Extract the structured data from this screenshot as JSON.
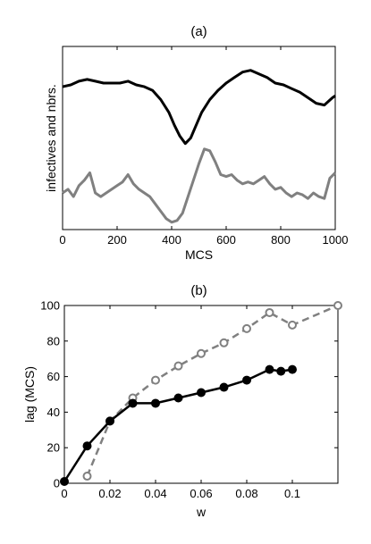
{
  "chart_data": [
    {
      "type": "line",
      "title": "(a)",
      "xlabel": "MCS",
      "ylabel": "infectives and nbrs.",
      "xlim": [
        0,
        1000
      ],
      "ylim": [
        0,
        1
      ],
      "y_ticks_shown": false,
      "xticks": [
        0,
        200,
        400,
        600,
        800,
        1000
      ],
      "xtick_labels": [
        "0",
        "200",
        "400",
        "600",
        "800",
        "1000"
      ],
      "grid": false,
      "series": [
        {
          "color": "#000000",
          "x": [
            0,
            30,
            60,
            90,
            120,
            150,
            180,
            210,
            240,
            270,
            300,
            330,
            360,
            390,
            410,
            430,
            450,
            470,
            490,
            510,
            540,
            570,
            600,
            630,
            660,
            690,
            720,
            750,
            780,
            810,
            840,
            870,
            900,
            930,
            960,
            990,
            1000
          ],
          "y": [
            0.78,
            0.79,
            0.81,
            0.82,
            0.81,
            0.8,
            0.8,
            0.8,
            0.81,
            0.79,
            0.78,
            0.76,
            0.71,
            0.64,
            0.57,
            0.51,
            0.47,
            0.5,
            0.57,
            0.64,
            0.71,
            0.76,
            0.8,
            0.83,
            0.86,
            0.87,
            0.85,
            0.83,
            0.8,
            0.79,
            0.77,
            0.75,
            0.72,
            0.69,
            0.68,
            0.72,
            0.73
          ]
        },
        {
          "color": "#808080",
          "x": [
            0,
            20,
            40,
            60,
            80,
            100,
            120,
            140,
            160,
            180,
            200,
            220,
            240,
            260,
            280,
            300,
            320,
            340,
            360,
            380,
            400,
            420,
            440,
            460,
            480,
            500,
            520,
            540,
            560,
            580,
            600,
            620,
            640,
            660,
            680,
            700,
            720,
            740,
            760,
            780,
            800,
            820,
            840,
            860,
            880,
            900,
            920,
            940,
            960,
            980,
            1000
          ],
          "y": [
            0.2,
            0.22,
            0.18,
            0.24,
            0.27,
            0.31,
            0.2,
            0.18,
            0.2,
            0.22,
            0.24,
            0.26,
            0.3,
            0.25,
            0.22,
            0.2,
            0.18,
            0.14,
            0.1,
            0.06,
            0.04,
            0.05,
            0.09,
            0.18,
            0.27,
            0.36,
            0.44,
            0.43,
            0.37,
            0.3,
            0.29,
            0.3,
            0.27,
            0.25,
            0.26,
            0.25,
            0.27,
            0.29,
            0.25,
            0.22,
            0.23,
            0.2,
            0.18,
            0.2,
            0.19,
            0.17,
            0.2,
            0.18,
            0.17,
            0.28,
            0.31
          ]
        }
      ]
    },
    {
      "type": "line",
      "title": "(b)",
      "xlabel": "w",
      "ylabel": "lag (MCS)",
      "xlim": [
        0,
        0.12
      ],
      "ylim": [
        0,
        100
      ],
      "xticks": [
        0,
        0.02,
        0.04,
        0.06,
        0.08,
        0.1
      ],
      "xtick_labels": [
        "0",
        "0.02",
        "0.04",
        "0.06",
        "0.08",
        "0.1"
      ],
      "yticks": [
        0,
        20,
        40,
        60,
        80,
        100
      ],
      "ytick_labels": [
        "0",
        "20",
        "40",
        "60",
        "80",
        "100"
      ],
      "grid": false,
      "series": [
        {
          "color": "#000000",
          "line_style": "solid",
          "marker": "filled-circle",
          "x": [
            0,
            0.01,
            0.02,
            0.03,
            0.04,
            0.05,
            0.06,
            0.07,
            0.08,
            0.09,
            0.095,
            0.1
          ],
          "y": [
            1,
            21,
            35,
            45,
            45,
            48,
            51,
            54,
            58,
            64,
            63,
            64
          ]
        },
        {
          "color": "#808080",
          "line_style": "dashed",
          "marker": "open-circle",
          "x": [
            0.01,
            0.02,
            0.03,
            0.04,
            0.05,
            0.06,
            0.07,
            0.08,
            0.09,
            0.1,
            0.12
          ],
          "y": [
            4,
            35,
            48,
            58,
            66,
            73,
            79,
            87,
            96,
            89,
            100
          ]
        }
      ]
    }
  ]
}
